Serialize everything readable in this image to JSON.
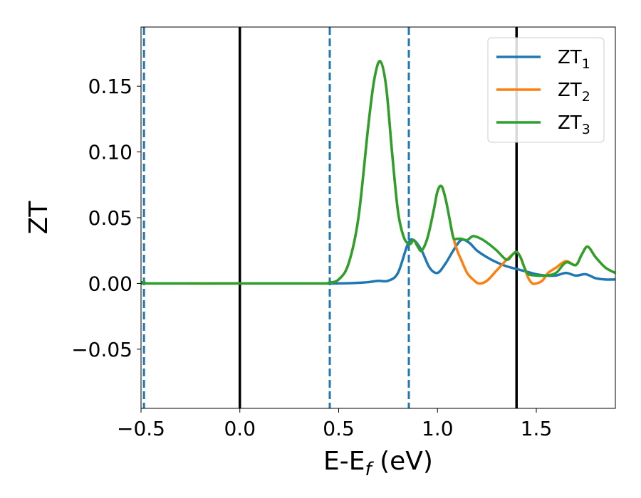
{
  "chart_data": {
    "type": "line",
    "xlabel": "E-E",
    "xlabel_sub": "f",
    "xlabel_unit": " (eV)",
    "ylabel": "ZT",
    "xlim": [
      -0.5,
      1.9
    ],
    "ylim": [
      -0.095,
      0.195
    ],
    "xticks": [
      {
        "value": -0.5,
        "label": "−0.5"
      },
      {
        "value": 0.0,
        "label": "0.0"
      },
      {
        "value": 0.5,
        "label": "0.5"
      },
      {
        "value": 1.0,
        "label": "1.0"
      },
      {
        "value": 1.5,
        "label": "1.5"
      }
    ],
    "yticks": [
      {
        "value": -0.05,
        "label": "−0.05"
      },
      {
        "value": 0.0,
        "label": "0.00"
      },
      {
        "value": 0.05,
        "label": "0.05"
      },
      {
        "value": 0.1,
        "label": "0.10"
      },
      {
        "value": 0.15,
        "label": "0.15"
      }
    ],
    "legend": {
      "position": "top-right"
    },
    "vlines": [
      {
        "x": 0.0,
        "style": "solid",
        "color": "#000000"
      },
      {
        "x": 1.4,
        "style": "solid",
        "color": "#000000"
      },
      {
        "x": -0.485,
        "style": "dashed",
        "color": "#1f77b4"
      },
      {
        "x": 0.455,
        "style": "dashed",
        "color": "#1f77b4"
      },
      {
        "x": 0.855,
        "style": "dashed",
        "color": "#1f77b4"
      }
    ],
    "series": [
      {
        "name": "ZT",
        "sub": "1",
        "color": "#1f77b4",
        "x": [
          -0.5,
          -0.4,
          0.0,
          0.4,
          0.5,
          0.6,
          0.65,
          0.7,
          0.75,
          0.8,
          0.85,
          0.88,
          0.92,
          0.96,
          1.0,
          1.04,
          1.08,
          1.12,
          1.16,
          1.2,
          1.25,
          1.3,
          1.35,
          1.4,
          1.45,
          1.5,
          1.55,
          1.6,
          1.65,
          1.7,
          1.75,
          1.8,
          1.85,
          1.9
        ],
        "y": [
          0.0,
          0.0,
          0.0,
          0.0,
          0.0,
          0.0005,
          0.001,
          0.002,
          0.002,
          0.008,
          0.03,
          0.033,
          0.025,
          0.012,
          0.008,
          0.015,
          0.025,
          0.033,
          0.031,
          0.025,
          0.02,
          0.016,
          0.013,
          0.011,
          0.009,
          0.007,
          0.006,
          0.006,
          0.008,
          0.006,
          0.007,
          0.004,
          0.003,
          0.003
        ]
      },
      {
        "name": "ZT",
        "sub": "2",
        "color": "#ff7f0e",
        "x": [
          -0.5,
          -0.48,
          -0.45,
          0.0,
          0.4,
          0.45,
          0.5,
          0.55,
          0.6,
          0.65,
          0.68,
          0.71,
          0.74,
          0.77,
          0.8,
          0.83,
          0.86,
          0.88,
          0.9,
          0.92,
          0.95,
          0.98,
          1.0,
          1.02,
          1.04,
          1.06,
          1.08,
          1.1,
          1.12,
          1.15,
          1.18,
          1.21,
          1.25,
          1.3,
          1.35,
          1.38,
          1.4,
          1.42,
          1.44,
          1.46,
          1.48,
          1.5,
          1.53,
          1.56,
          1.6,
          1.65,
          1.7,
          1.73,
          1.76,
          1.8,
          1.85,
          1.9
        ],
        "y": [
          0.001,
          0.0005,
          0.0,
          0.0,
          0.0,
          0.0005,
          0.003,
          0.015,
          0.05,
          0.12,
          0.155,
          0.169,
          0.15,
          0.1,
          0.055,
          0.035,
          0.03,
          0.033,
          0.028,
          0.025,
          0.035,
          0.055,
          0.07,
          0.074,
          0.065,
          0.05,
          0.035,
          0.025,
          0.018,
          0.008,
          0.003,
          0.0,
          0.002,
          0.01,
          0.018,
          0.022,
          0.024,
          0.02,
          0.012,
          0.004,
          0.0,
          0.0,
          0.002,
          0.008,
          0.012,
          0.017,
          0.014,
          0.022,
          0.028,
          0.02,
          0.012,
          0.008
        ]
      },
      {
        "name": "ZT",
        "sub": "3",
        "color": "#2ca02c",
        "x": [
          -0.5,
          -0.48,
          -0.45,
          0.0,
          0.4,
          0.45,
          0.5,
          0.55,
          0.6,
          0.65,
          0.68,
          0.71,
          0.74,
          0.77,
          0.8,
          0.83,
          0.86,
          0.88,
          0.9,
          0.92,
          0.95,
          0.98,
          1.0,
          1.02,
          1.04,
          1.06,
          1.08,
          1.1,
          1.12,
          1.15,
          1.18,
          1.22,
          1.26,
          1.3,
          1.35,
          1.38,
          1.4,
          1.42,
          1.44,
          1.46,
          1.5,
          1.55,
          1.6,
          1.65,
          1.7,
          1.73,
          1.76,
          1.8,
          1.85,
          1.9
        ],
        "y": [
          0.001,
          0.0005,
          0.0,
          0.0,
          0.0,
          0.0005,
          0.003,
          0.015,
          0.05,
          0.12,
          0.155,
          0.169,
          0.15,
          0.1,
          0.055,
          0.035,
          0.03,
          0.033,
          0.028,
          0.025,
          0.035,
          0.055,
          0.07,
          0.074,
          0.065,
          0.05,
          0.035,
          0.034,
          0.034,
          0.033,
          0.036,
          0.034,
          0.03,
          0.025,
          0.018,
          0.022,
          0.024,
          0.02,
          0.012,
          0.007,
          0.006,
          0.006,
          0.008,
          0.016,
          0.014,
          0.022,
          0.028,
          0.02,
          0.012,
          0.008
        ]
      }
    ]
  }
}
